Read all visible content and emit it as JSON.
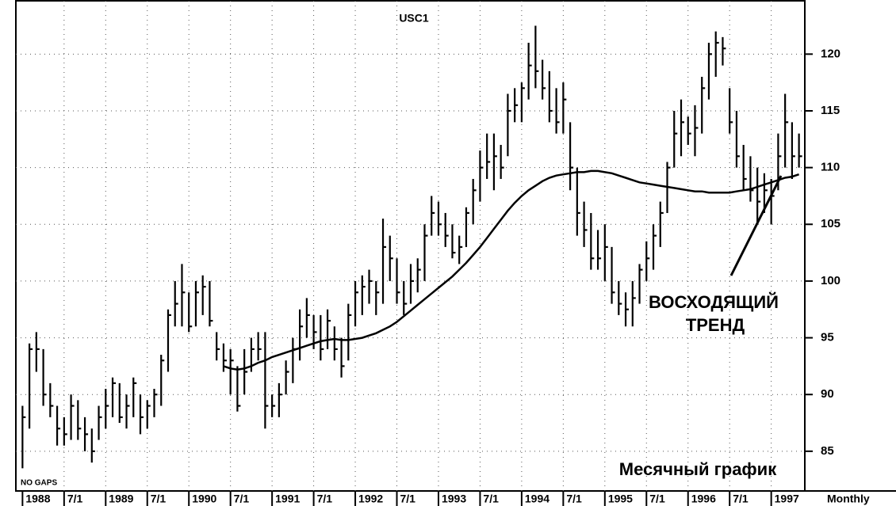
{
  "chart_data": {
    "type": "ohlc",
    "title": "USC1",
    "categories": [
      "1988",
      null,
      null,
      null,
      null,
      null,
      "7/1",
      null,
      null,
      null,
      null,
      null,
      "1989",
      null,
      null,
      null,
      null,
      null,
      "7/1",
      null,
      null,
      null,
      null,
      null,
      "1990",
      null,
      null,
      null,
      null,
      null,
      "7/1",
      null,
      null,
      null,
      null,
      null,
      "1991",
      null,
      null,
      null,
      null,
      null,
      "7/1",
      null,
      null,
      null,
      null,
      null,
      "1992",
      null,
      null,
      null,
      null,
      null,
      "7/1",
      null,
      null,
      null,
      null,
      null,
      "1993",
      null,
      null,
      null,
      null,
      null,
      "7/1",
      null,
      null,
      null,
      null,
      null,
      "1994",
      null,
      null,
      null,
      null,
      null,
      "7/1",
      null,
      null,
      null,
      null,
      null,
      "1995",
      null,
      null,
      null,
      null,
      null,
      "7/1",
      null,
      null,
      null,
      null,
      null,
      "1996",
      null,
      null,
      null,
      null,
      null,
      "7/1",
      null,
      null,
      null,
      null,
      null,
      "1997",
      null,
      null,
      null,
      null
    ],
    "high": [
      89,
      94.5,
      95.5,
      94,
      91,
      89,
      88,
      90,
      89.5,
      88,
      87,
      89,
      90.5,
      91.5,
      91,
      90,
      91.5,
      90,
      89.5,
      90.5,
      93.5,
      97.5,
      100,
      101.5,
      99,
      100,
      100.5,
      100,
      95.5,
      94.5,
      94,
      92.5,
      94,
      95,
      95.5,
      95.5,
      90,
      91,
      93,
      95,
      97.5,
      98.5,
      97,
      97,
      97.5,
      96,
      95,
      98,
      100,
      100.5,
      101,
      100,
      105.5,
      104,
      102,
      100,
      101.5,
      102,
      105,
      107.5,
      107,
      106,
      105,
      104,
      106.5,
      109,
      111.5,
      113,
      113,
      112,
      116.5,
      117,
      117.5,
      121,
      122.5,
      119.5,
      118.5,
      117,
      117.5,
      114,
      110,
      107,
      106,
      104.5,
      105,
      103,
      100,
      99,
      100,
      101.5,
      103.5,
      105,
      107,
      110.5,
      115,
      116,
      114.5,
      115.5,
      118,
      121,
      122,
      121.5,
      117,
      115,
      112,
      111,
      110,
      109.5,
      109,
      113,
      116.5,
      114,
      113
    ],
    "low": [
      83.5,
      87,
      92,
      89,
      88,
      85.5,
      85.5,
      86,
      86,
      85,
      84,
      86,
      87,
      88,
      87.5,
      87,
      88,
      86.5,
      87,
      88,
      89,
      92,
      96,
      96,
      95.5,
      96,
      97,
      96,
      93,
      92,
      90,
      88.5,
      90,
      92,
      93,
      87,
      88,
      88,
      90,
      91,
      93,
      95,
      94,
      93,
      94,
      93,
      91.5,
      93,
      96,
      97,
      98,
      97,
      98,
      100,
      98,
      97,
      98,
      99,
      100,
      104,
      104,
      103,
      102,
      101.5,
      103,
      105,
      107,
      109,
      108,
      109,
      111,
      114,
      114,
      116,
      117,
      116,
      114,
      113,
      113,
      108,
      104,
      103,
      101,
      101,
      100,
      98,
      97,
      96,
      96,
      98,
      100,
      101,
      103,
      106,
      110,
      111,
      112,
      111,
      113,
      116,
      118,
      119,
      113,
      110,
      108,
      107,
      105,
      106,
      105,
      108,
      110,
      109,
      110
    ],
    "close": [
      88,
      94,
      94,
      90,
      89,
      87,
      86.5,
      89,
      87,
      86.5,
      85,
      88,
      89,
      91,
      88,
      89,
      91,
      88,
      89,
      90,
      93,
      97,
      98,
      99,
      96,
      99,
      99.5,
      96.5,
      94,
      93,
      93,
      89,
      92,
      94,
      94,
      89,
      89,
      90,
      92,
      94,
      96,
      97,
      95.5,
      94,
      96.5,
      94,
      92.5,
      97,
      99,
      99.5,
      100,
      99,
      103,
      102,
      99,
      98,
      100,
      101,
      104,
      106,
      105,
      104,
      102.5,
      103,
      106,
      108,
      110,
      110.5,
      111,
      110,
      115,
      115.5,
      117,
      119,
      118.5,
      117,
      115,
      114,
      116,
      110,
      106,
      104.5,
      102,
      102,
      103,
      99,
      98,
      97.5,
      98.5,
      101,
      102,
      104,
      106,
      110,
      113,
      114,
      113,
      113.5,
      117,
      120,
      121,
      120.5,
      114,
      111,
      109,
      108,
      107,
      108,
      107.5,
      111,
      114,
      111,
      111
    ],
    "color": "#000000",
    "moving_average": {
      "color": "#000000",
      "values": [
        null,
        null,
        null,
        null,
        null,
        null,
        null,
        null,
        null,
        null,
        null,
        null,
        null,
        null,
        null,
        null,
        null,
        null,
        null,
        null,
        null,
        null,
        null,
        null,
        null,
        null,
        null,
        null,
        null,
        92.5,
        92.3,
        92.2,
        92.3,
        92.5,
        92.8,
        93.0,
        93.3,
        93.5,
        93.7,
        93.9,
        94.1,
        94.3,
        94.5,
        94.7,
        94.8,
        94.9,
        94.8,
        94.8,
        94.9,
        95.0,
        95.2,
        95.4,
        95.7,
        96.0,
        96.4,
        96.9,
        97.4,
        97.9,
        98.4,
        98.9,
        99.4,
        99.9,
        100.4,
        101.0,
        101.6,
        102.3,
        103.0,
        103.8,
        104.6,
        105.4,
        106.2,
        106.9,
        107.5,
        108.0,
        108.4,
        108.8,
        109.1,
        109.3,
        109.4,
        109.5,
        109.6,
        109.6,
        109.7,
        109.7,
        109.6,
        109.5,
        109.3,
        109.1,
        108.9,
        108.7,
        108.6,
        108.5,
        108.4,
        108.3,
        108.2,
        108.1,
        108.0,
        107.9,
        107.9,
        107.8,
        107.8,
        107.8,
        107.8,
        107.9,
        108.0,
        108.1,
        108.3,
        108.5,
        108.7,
        108.9,
        109.1,
        109.2,
        109.4
      ]
    },
    "ylim": [
      81.5,
      124.7
    ],
    "yticks": [
      85,
      90,
      95,
      100,
      105,
      110,
      115,
      120
    ],
    "grid": true,
    "x_label": "Monthly",
    "annotations": [
      "ВОСХОДЯЩИЙ",
      "ТРЕНД",
      "Месячный график",
      "NO GAPS"
    ]
  }
}
